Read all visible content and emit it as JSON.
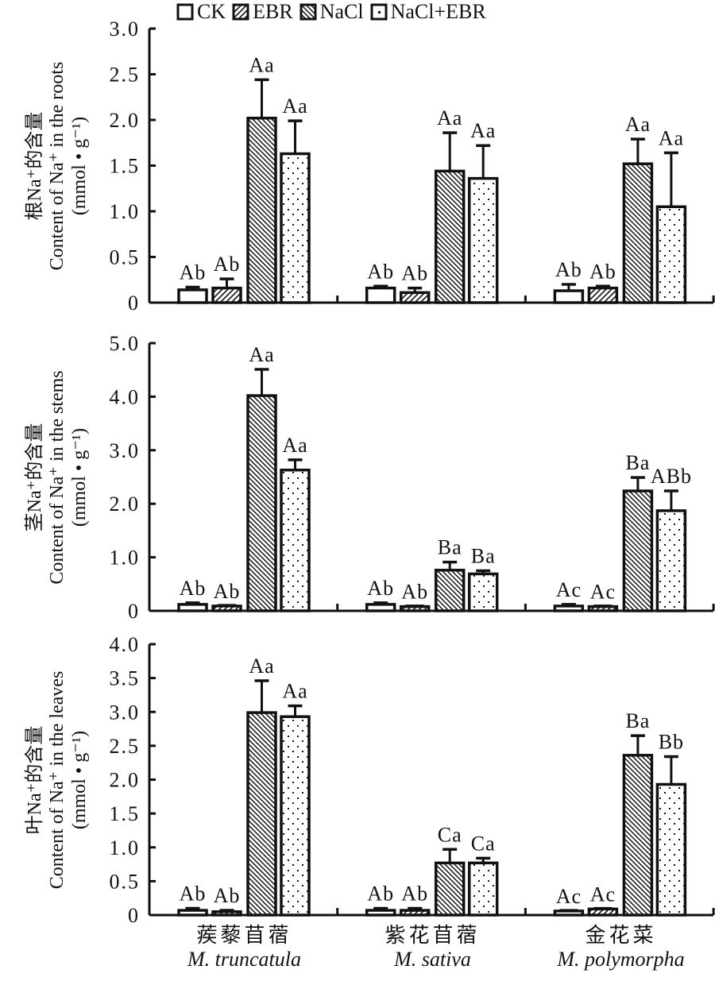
{
  "legend": [
    {
      "label": "CK",
      "pattern": "empty"
    },
    {
      "label": "EBR",
      "pattern": "forward-hatch"
    },
    {
      "label": "NaCl",
      "pattern": "back-hatch"
    },
    {
      "label": "NaCl+EBR",
      "pattern": "dots"
    }
  ],
  "categories": [
    {
      "zh": "蒺藜苜蓿",
      "species": "M. truncatula"
    },
    {
      "zh": "紫花苜蓿",
      "species": "M. sativa"
    },
    {
      "zh": "金花菜",
      "species": "M. polymorpha"
    }
  ],
  "colors": {
    "ink": "#111111",
    "background": "#ffffff"
  },
  "chart_data": [
    {
      "type": "bar",
      "title": "",
      "ylabel_zh": "根Na⁺的含量",
      "ylabel_en": "Content of Na⁺ in the roots",
      "ylabel_unit": "(mmol • g⁻¹)",
      "ylim": [
        0,
        3.0
      ],
      "yticks": [
        "0",
        "0.5",
        "1.0",
        "1.5",
        "2.0",
        "2.5",
        "3.0"
      ],
      "ytick_values": [
        0,
        0.5,
        1.0,
        1.5,
        2.0,
        2.5,
        3.0
      ],
      "categories": [
        "M. truncatula",
        "M. sativa",
        "M. polymorpha"
      ],
      "series": [
        {
          "name": "CK",
          "values": [
            0.14,
            0.16,
            0.13
          ],
          "errors": [
            0.03,
            0.02,
            0.07
          ],
          "labels": [
            "Ab",
            "Ab",
            "Ab"
          ]
        },
        {
          "name": "EBR",
          "values": [
            0.16,
            0.11,
            0.16
          ],
          "errors": [
            0.1,
            0.05,
            0.02
          ],
          "labels": [
            "Ab",
            "Ab",
            "Ab"
          ]
        },
        {
          "name": "NaCl",
          "values": [
            2.02,
            1.44,
            1.52
          ],
          "errors": [
            0.42,
            0.42,
            0.27
          ],
          "labels": [
            "Aa",
            "Aa",
            "Aa"
          ]
        },
        {
          "name": "NaCl+EBR",
          "values": [
            1.63,
            1.36,
            1.05
          ],
          "errors": [
            0.36,
            0.36,
            0.59
          ],
          "labels": [
            "Aa",
            "Aa",
            "Aa"
          ]
        }
      ]
    },
    {
      "type": "bar",
      "title": "",
      "ylabel_zh": "茎Na⁺的含量",
      "ylabel_en": "Content of Na⁺ in the stems",
      "ylabel_unit": "(mmol • g⁻¹)",
      "ylim": [
        0,
        5.0
      ],
      "yticks": [
        "0",
        "1.0",
        "2.0",
        "3.0",
        "4.0",
        "5.0"
      ],
      "ytick_values": [
        0,
        1.0,
        2.0,
        3.0,
        4.0,
        5.0
      ],
      "categories": [
        "M. truncatula",
        "M. sativa",
        "M. polymorpha"
      ],
      "series": [
        {
          "name": "CK",
          "values": [
            0.12,
            0.12,
            0.09
          ],
          "errors": [
            0.03,
            0.03,
            0.03
          ],
          "labels": [
            "Ab",
            "Ab",
            "Ac"
          ]
        },
        {
          "name": "EBR",
          "values": [
            0.09,
            0.08,
            0.08
          ],
          "errors": [
            0.0,
            0.0,
            0.0
          ],
          "labels": [
            "Ab",
            "Ab",
            "Ac"
          ]
        },
        {
          "name": "NaCl",
          "values": [
            4.02,
            0.76,
            2.24
          ],
          "errors": [
            0.49,
            0.15,
            0.25
          ],
          "labels": [
            "Aa",
            "Ba",
            "Ba"
          ]
        },
        {
          "name": "NaCl+EBR",
          "values": [
            2.63,
            0.69,
            1.87
          ],
          "errors": [
            0.19,
            0.06,
            0.37
          ],
          "labels": [
            "Aa",
            "Ba",
            "ABb"
          ]
        }
      ]
    },
    {
      "type": "bar",
      "title": "",
      "ylabel_zh": "叶Na⁺的含量",
      "ylabel_en": "Content of Na⁺ in the leaves",
      "ylabel_unit": "(mmol • g⁻¹)",
      "ylim": [
        0,
        4.0
      ],
      "yticks": [
        "0",
        "0.5",
        "1.0",
        "1.5",
        "2.0",
        "2.5",
        "3.0",
        "3.5",
        "4.0"
      ],
      "ytick_values": [
        0,
        0.5,
        1.0,
        1.5,
        2.0,
        2.5,
        3.0,
        3.5,
        4.0
      ],
      "categories": [
        "M. truncatula",
        "M. sativa",
        "M. polymorpha"
      ],
      "series": [
        {
          "name": "CK",
          "values": [
            0.07,
            0.07,
            0.06
          ],
          "errors": [
            0.03,
            0.03,
            0.0
          ],
          "labels": [
            "Ab",
            "Ab",
            "Ac"
          ]
        },
        {
          "name": "EBR",
          "values": [
            0.05,
            0.07,
            0.09
          ],
          "errors": [
            0.02,
            0.03,
            0.0
          ],
          "labels": [
            "Ab",
            "Ab",
            "Ac"
          ]
        },
        {
          "name": "NaCl",
          "values": [
            2.99,
            0.77,
            2.36
          ],
          "errors": [
            0.47,
            0.2,
            0.29
          ],
          "labels": [
            "Aa",
            "Ca",
            "Ba"
          ]
        },
        {
          "name": "NaCl+EBR",
          "values": [
            2.93,
            0.77,
            1.93
          ],
          "errors": [
            0.16,
            0.07,
            0.41
          ],
          "labels": [
            "Aa",
            "Ca",
            "Bb"
          ]
        }
      ]
    }
  ]
}
